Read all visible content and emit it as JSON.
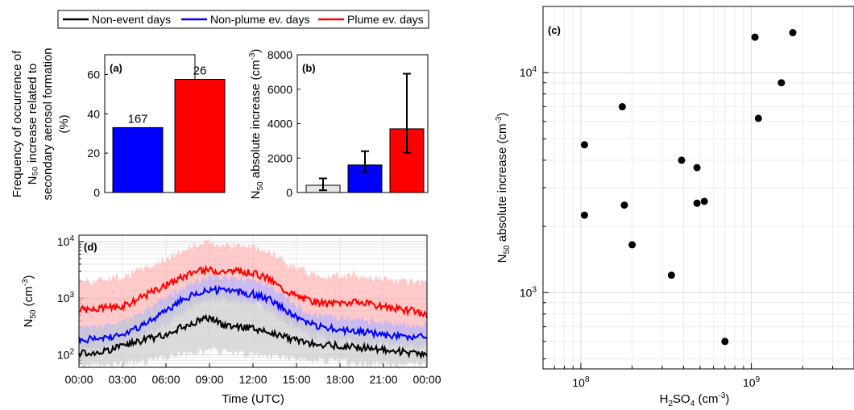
{
  "colors": {
    "non_event": "#000000",
    "non_plume": "#0000ff",
    "plume": "#ff0000",
    "plume_band": "#ffb3b3",
    "non_plume_band": "#b3b3ff",
    "non_event_band": "#cccccc",
    "bar_b_gray": "#e6e6e6"
  },
  "legend": {
    "placement": "top",
    "items": [
      "Non-event days",
      "Non-plume ev. days",
      "Plume ev. days"
    ]
  },
  "chart_data": [
    {
      "panel": "(a)",
      "type": "bar",
      "ylabel_lines": [
        "Frequency of occurrence of",
        "N₅₀ increase related to",
        "secondary aerosol formation",
        "(%)"
      ],
      "ylim": [
        0,
        70
      ],
      "yticks": [
        0,
        20,
        40,
        60
      ],
      "categories": [
        "Non-plume ev. days",
        "Plume ev. days"
      ],
      "values": [
        33,
        57.5
      ],
      "bar_labels": [
        "167",
        "26"
      ],
      "colors": [
        "#0000ff",
        "#ff0000"
      ]
    },
    {
      "panel": "(b)",
      "type": "bar",
      "ylabel": "N₅₀ absolute increase (cm⁻³)",
      "ylim": [
        0,
        8000
      ],
      "yticks": [
        0,
        2000,
        4000,
        6000,
        8000
      ],
      "categories": [
        "Non-event days",
        "Non-plume ev. days",
        "Plume ev. days"
      ],
      "values": [
        420,
        1600,
        3700
      ],
      "error_low": [
        130,
        1200,
        2300
      ],
      "error_high": [
        820,
        2400,
        6900
      ],
      "colors": [
        "#e6e6e6",
        "#0000ff",
        "#ff0000"
      ]
    },
    {
      "panel": "(c)",
      "type": "scatter",
      "xscale": "log",
      "yscale": "log",
      "xlabel": "H₂SO₄ (cm⁻³)",
      "ylabel": "N₅₀ absolute increase (cm⁻³)",
      "xlim": [
        60000000.0,
        4000000000.0
      ],
      "ylim": [
        450,
        20000
      ],
      "xtick_labels": [
        "10⁸",
        "10⁹"
      ],
      "ytick_labels": [
        "10³",
        "10⁴"
      ],
      "points": [
        {
          "x": 105000000.0,
          "y": 4700
        },
        {
          "x": 105000000.0,
          "y": 2250
        },
        {
          "x": 175000000.0,
          "y": 7000
        },
        {
          "x": 180000000.0,
          "y": 2500
        },
        {
          "x": 200000000.0,
          "y": 1650
        },
        {
          "x": 340000000.0,
          "y": 1200
        },
        {
          "x": 390000000.0,
          "y": 4000
        },
        {
          "x": 480000000.0,
          "y": 3700
        },
        {
          "x": 480000000.0,
          "y": 2550
        },
        {
          "x": 530000000.0,
          "y": 2600
        },
        {
          "x": 700000000.0,
          "y": 600
        },
        {
          "x": 1050000000.0,
          "y": 14500
        },
        {
          "x": 1100000000.0,
          "y": 6200
        },
        {
          "x": 1500000000.0,
          "y": 9000
        },
        {
          "x": 1750000000.0,
          "y": 15200
        }
      ]
    },
    {
      "panel": "(d)",
      "type": "line",
      "yscale": "log",
      "xlabel": "Time (UTC)",
      "ylabel": "N₅₀ (cm⁻³)",
      "ylim": [
        60,
        13000
      ],
      "ytick_labels": [
        "10²",
        "10³",
        "10⁴"
      ],
      "x_tick_labels": [
        "00:00",
        "03:00",
        "06:00",
        "09:00",
        "12:00",
        "15:00",
        "18:00",
        "21:00",
        "00:00"
      ],
      "x_hours": [
        0,
        1,
        2,
        3,
        4,
        5,
        6,
        7,
        8,
        9,
        10,
        11,
        12,
        13,
        14,
        15,
        16,
        17,
        18,
        19,
        20,
        21,
        22,
        23,
        24
      ],
      "series": [
        {
          "name": "Plume ev. days",
          "color": "#ff0000",
          "band": "#ffb3b3",
          "values": [
            650,
            620,
            700,
            720,
            950,
            1300,
            1700,
            2300,
            3000,
            3200,
            3000,
            3000,
            2800,
            2300,
            1500,
            1100,
            900,
            800,
            850,
            850,
            800,
            700,
            650,
            600,
            500
          ],
          "upper": [
            2200,
            2000,
            2300,
            2500,
            3000,
            3800,
            5000,
            6500,
            9000,
            9500,
            9000,
            8500,
            8000,
            6500,
            5000,
            3500,
            2800,
            2500,
            2500,
            2600,
            2400,
            2200,
            2000,
            1900,
            1800
          ],
          "lower": [
            150,
            150,
            170,
            180,
            250,
            350,
            500,
            700,
            1000,
            1100,
            1000,
            1000,
            900,
            700,
            450,
            350,
            280,
            250,
            260,
            260,
            250,
            220,
            200,
            190,
            180
          ]
        },
        {
          "name": "Non-plume ev. days",
          "color": "#0000ff",
          "band": "#b3b3ff",
          "values": [
            190,
            190,
            200,
            230,
            300,
            400,
            600,
            900,
            1200,
            1400,
            1400,
            1300,
            1200,
            1000,
            700,
            450,
            350,
            300,
            280,
            260,
            250,
            230,
            210,
            200,
            220
          ],
          "upper": [
            300,
            310,
            330,
            380,
            500,
            700,
            1000,
            1500,
            2000,
            2300,
            2300,
            2200,
            2000,
            1600,
            1100,
            750,
            550,
            480,
            440,
            420,
            400,
            380,
            360,
            340,
            350
          ],
          "lower": [
            130,
            130,
            140,
            150,
            190,
            250,
            350,
            550,
            750,
            900,
            900,
            850,
            780,
            650,
            450,
            300,
            230,
            200,
            180,
            170,
            165,
            150,
            140,
            135,
            140
          ]
        },
        {
          "name": "Non-event days",
          "color": "#000000",
          "band": "#cccccc",
          "values": [
            110,
            105,
            120,
            150,
            170,
            200,
            230,
            300,
            380,
            450,
            330,
            310,
            300,
            260,
            220,
            180,
            160,
            150,
            145,
            140,
            130,
            125,
            115,
            110,
            100
          ],
          "upper": [
            300,
            290,
            320,
            400,
            500,
            600,
            800,
            1000,
            1300,
            1500,
            1200,
            1000,
            900,
            700,
            550,
            450,
            380,
            340,
            320,
            300,
            280,
            260,
            240,
            230,
            220
          ],
          "lower": [
            65,
            65,
            65,
            70,
            75,
            80,
            90,
            100,
            110,
            120,
            110,
            105,
            100,
            95,
            90,
            85,
            80,
            78,
            75,
            72,
            70,
            68,
            66,
            65,
            65
          ]
        }
      ]
    }
  ]
}
